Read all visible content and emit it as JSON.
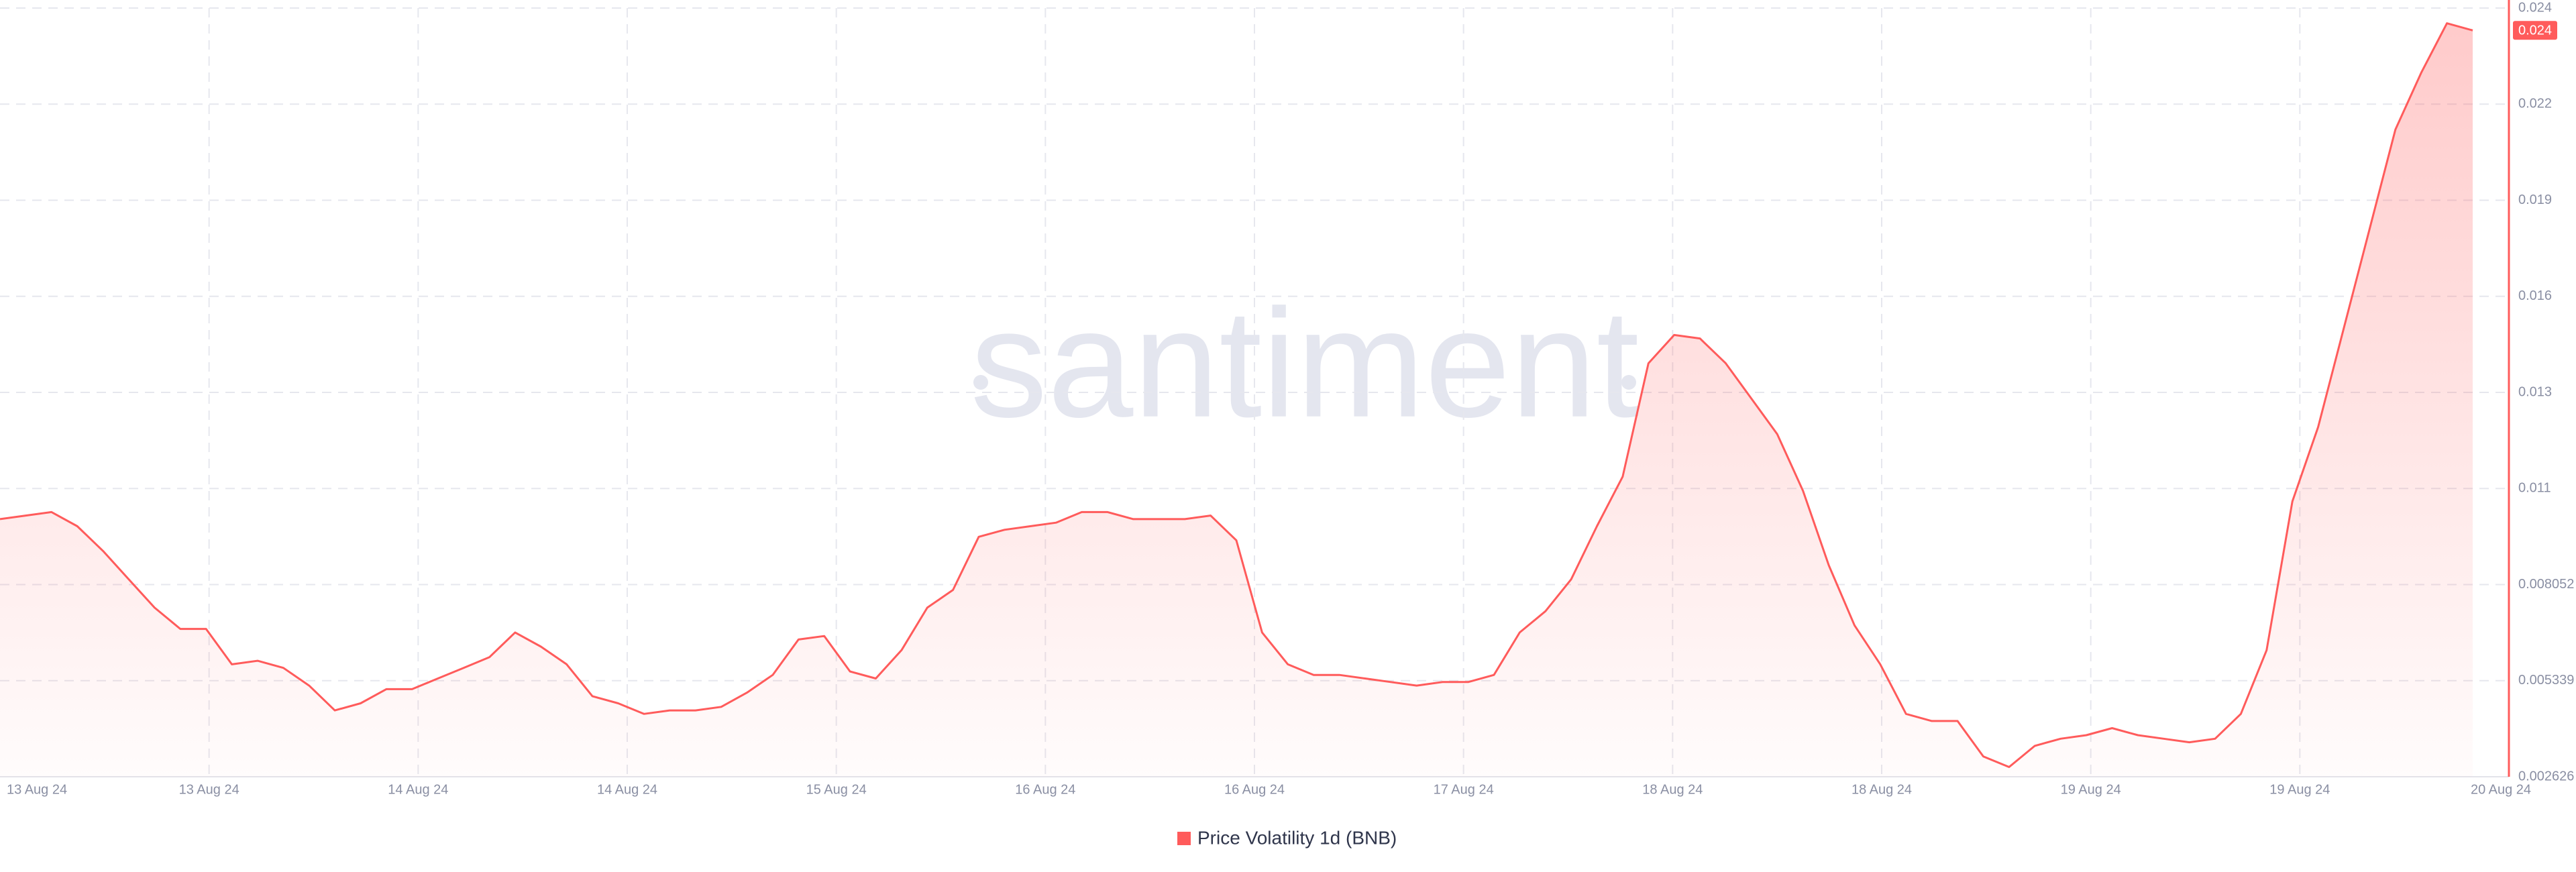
{
  "chart_data": {
    "type": "area",
    "watermark": "santiment",
    "xtick_labels": [
      "13 Aug 24",
      "13 Aug 24",
      "14 Aug 24",
      "14 Aug 24",
      "15 Aug 24",
      "16 Aug 24",
      "16 Aug 24",
      "17 Aug 24",
      "18 Aug 24",
      "18 Aug 24",
      "19 Aug 24",
      "19 Aug 24",
      "20 Aug 24"
    ],
    "series": [
      {
        "name": "Price Volatility 1d (BNB)",
        "color": "#ff5b5b",
        "values": [
          0.0099,
          0.01,
          0.0101,
          0.0097,
          0.009,
          0.0082,
          0.0074,
          0.0068,
          0.0068,
          0.0058,
          0.0059,
          0.0057,
          0.0052,
          0.0045,
          0.0047,
          0.0051,
          0.0051,
          0.0054,
          0.0057,
          0.006,
          0.0067,
          0.0063,
          0.0058,
          0.0049,
          0.0047,
          0.0044,
          0.0045,
          0.0045,
          0.0046,
          0.005,
          0.0055,
          0.0065,
          0.0066,
          0.0056,
          0.0054,
          0.0062,
          0.0074,
          0.0079,
          0.0094,
          0.0096,
          0.0097,
          0.0098,
          0.0101,
          0.0101,
          0.0099,
          0.0099,
          0.0099,
          0.01,
          0.0093,
          0.0067,
          0.0058,
          0.0055,
          0.0055,
          0.0054,
          0.0053,
          0.0052,
          0.0053,
          0.0053,
          0.0055,
          0.0067,
          0.0073,
          0.0082,
          0.0097,
          0.0111,
          0.0143,
          0.0151,
          0.015,
          0.0143,
          0.0133,
          0.0123,
          0.0107,
          0.0086,
          0.0069,
          0.0058,
          0.0044,
          0.0042,
          0.0042,
          0.0032,
          0.0029,
          0.0035,
          0.0037,
          0.0038,
          0.004,
          0.0038,
          0.0037,
          0.0036,
          0.0037,
          0.0044,
          0.0062,
          0.0104,
          0.0125,
          0.0153,
          0.0181,
          0.0209,
          0.0225,
          0.0239,
          0.0237
        ],
        "value_labels": [
          null,
          null,
          null,
          null,
          null,
          null,
          null,
          null,
          null,
          null,
          null,
          null,
          null,
          null,
          null,
          null,
          null,
          null,
          null,
          null,
          null,
          null,
          null,
          null,
          null,
          null,
          null,
          null,
          null,
          null,
          null,
          null,
          null,
          null,
          null,
          null,
          null,
          null,
          null,
          null,
          null,
          null,
          null,
          null,
          null,
          null,
          null,
          null,
          null,
          null,
          null,
          null,
          null,
          null,
          null,
          null,
          null,
          null,
          null,
          null,
          null,
          null,
          null,
          null,
          null,
          null,
          null,
          null,
          null,
          null,
          null,
          null,
          null,
          null,
          null,
          null,
          null,
          null,
          null,
          null,
          null,
          null,
          null,
          null,
          null,
          null,
          null,
          null,
          null,
          null,
          null,
          null,
          null,
          null,
          null,
          null,
          "0.024"
        ]
      }
    ],
    "ylim": [
      0.002626,
      0.02433
    ],
    "yticks": [
      0.002626,
      0.005339,
      0.008052,
      {
        "value": 0.010765,
        "label": "0.011"
      },
      {
        "value": 0.013478,
        "label": "0.013"
      },
      {
        "value": 0.016191,
        "label": "0.016"
      },
      {
        "value": 0.018904,
        "label": "0.019"
      },
      {
        "value": 0.021617,
        "label": "0.022"
      },
      {
        "value": 0.02433,
        "label": "0.024"
      }
    ],
    "grid": true
  }
}
